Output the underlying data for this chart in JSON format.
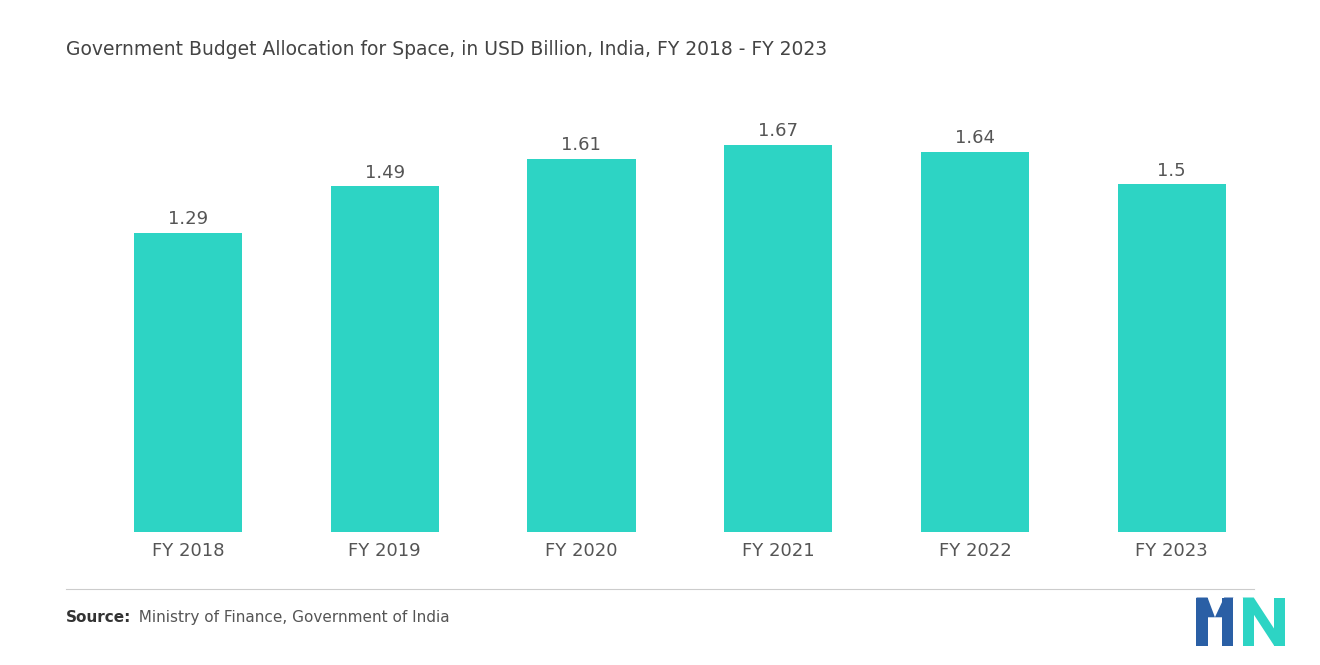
{
  "title": "Government Budget Allocation for Space, in USD Billion, India, FY 2018 - FY 2023",
  "categories": [
    "FY 2018",
    "FY 2019",
    "FY 2020",
    "FY 2021",
    "FY 2022",
    "FY 2023"
  ],
  "values": [
    1.29,
    1.49,
    1.61,
    1.67,
    1.64,
    1.5
  ],
  "bar_color": "#2DD4C4",
  "background_color": "#FFFFFF",
  "source_bold": "Source:",
  "source_rest": "  Ministry of Finance, Government of India",
  "title_fontsize": 13.5,
  "tick_fontsize": 13,
  "value_fontsize": 13,
  "source_fontsize": 11,
  "bar_width": 0.55,
  "ylim": [
    0,
    1.95
  ],
  "text_color": "#555555",
  "title_color": "#444444"
}
